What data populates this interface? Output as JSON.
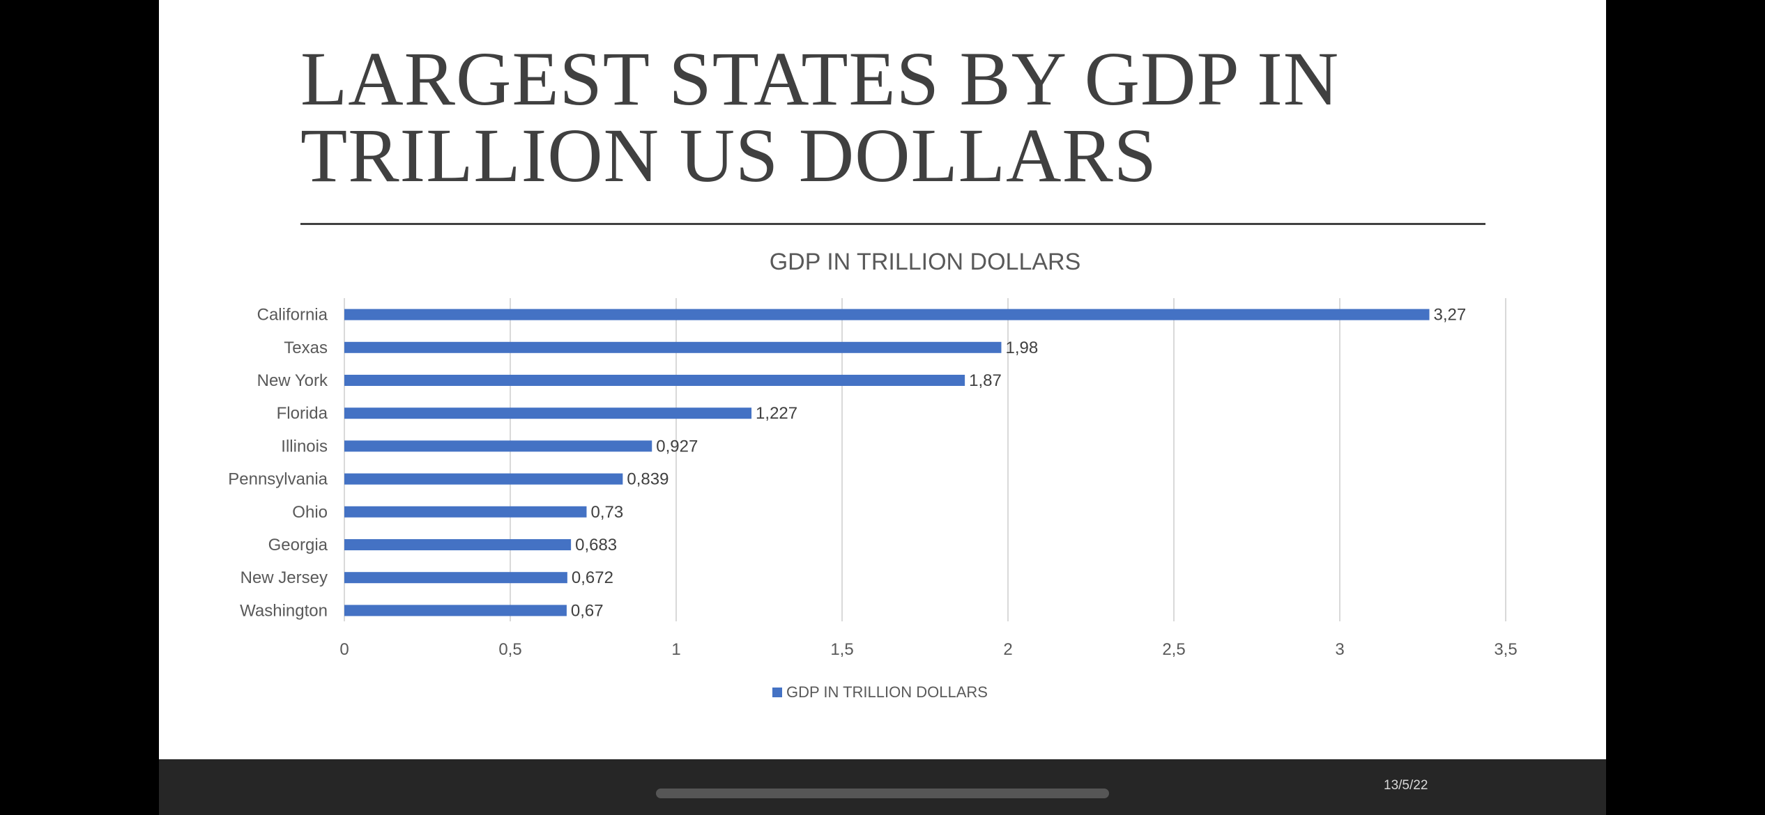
{
  "slide": {
    "title": "LARGEST STATES BY GDP IN TRILLION US DOLLARS",
    "date": "13/5/22"
  },
  "colors": {
    "bar": "#4472c4",
    "text": "#404040",
    "grid": "#d9d9d9",
    "footer": "#262626"
  },
  "chart_data": {
    "type": "bar",
    "orientation": "horizontal",
    "title": "GDP IN TRILLION DOLLARS",
    "categories": [
      "California",
      "Texas",
      "New York",
      "Florida",
      "Illinois",
      "Pennsylvania",
      "Ohio",
      "Georgia",
      "New Jersey",
      "Washington"
    ],
    "series": [
      {
        "name": "GDP IN TRILLION DOLLARS",
        "values": [
          3.27,
          1.98,
          1.87,
          1.227,
          0.927,
          0.839,
          0.73,
          0.683,
          0.672,
          0.67
        ],
        "labels": [
          "3,27",
          "1,98",
          "1,87",
          "1,227",
          "0,927",
          "0,839",
          "0,73",
          "0,683",
          "0,672",
          "0,67"
        ]
      }
    ],
    "xlim": [
      0,
      3.5
    ],
    "xticks": [
      0,
      0.5,
      1,
      1.5,
      2,
      2.5,
      3,
      3.5
    ],
    "xtick_labels": [
      "0",
      "0,5",
      "1",
      "1,5",
      "2",
      "2,5",
      "3",
      "3,5"
    ],
    "grid": true,
    "legend": "bottom",
    "xlabel": "",
    "ylabel": ""
  }
}
